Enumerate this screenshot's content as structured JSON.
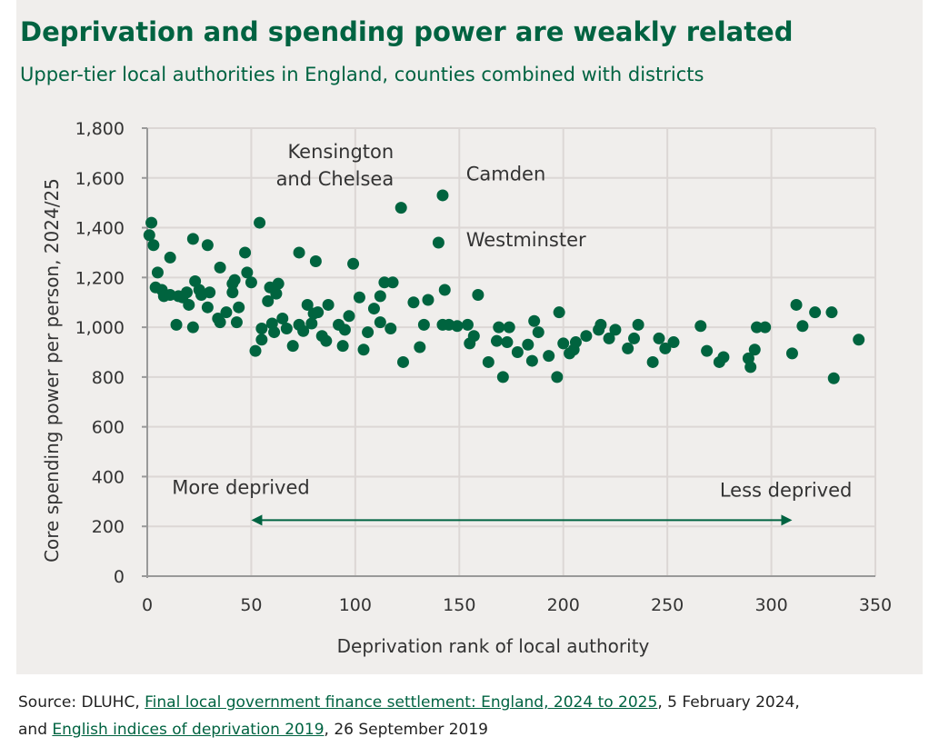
{
  "title": "Deprivation and spending power are weakly related",
  "subtitle": "Upper-tier local authorities in England, counties combined with districts",
  "chart_data": {
    "type": "scatter",
    "xlabel": "Deprivation rank of local authority",
    "ylabel": "Core spending power per person, 2024/25",
    "xlim": [
      0,
      350
    ],
    "ylim": [
      0,
      1800
    ],
    "xticks": [
      0,
      50,
      100,
      150,
      200,
      250,
      300,
      350
    ],
    "yticks": [
      0,
      200,
      400,
      600,
      800,
      1000,
      1200,
      1400,
      1600,
      1800
    ],
    "ytick_labels": [
      "0",
      "200",
      "400",
      "600",
      "800",
      "1,000",
      "1,200",
      "1,400",
      "1,600",
      "1,800"
    ],
    "grid": true,
    "color": "#00643f",
    "annotations": [
      {
        "text": "Kensington",
        "x": 122,
        "y": 1680
      },
      {
        "text": "and Chelsea",
        "x": 122,
        "y": 1570
      },
      {
        "text": "Camden",
        "x": 148,
        "y": 1590
      },
      {
        "text": "Westminster",
        "x": 148,
        "y": 1325
      },
      {
        "text": "More deprived",
        "x": 45,
        "y": 330
      },
      {
        "text": "Less deprived",
        "x": 307,
        "y": 320
      }
    ],
    "arrow": {
      "from": 50,
      "to": 310,
      "y": 225
    },
    "points": [
      [
        2,
        1420
      ],
      [
        1,
        1370
      ],
      [
        3,
        1330
      ],
      [
        5,
        1220
      ],
      [
        4,
        1160
      ],
      [
        7,
        1150
      ],
      [
        8,
        1125
      ],
      [
        11,
        1280
      ],
      [
        11,
        1130
      ],
      [
        14,
        1010
      ],
      [
        15,
        1125
      ],
      [
        17,
        1120
      ],
      [
        19,
        1140
      ],
      [
        20,
        1090
      ],
      [
        22,
        1000
      ],
      [
        22,
        1355
      ],
      [
        23,
        1185
      ],
      [
        25,
        1150
      ],
      [
        26,
        1130
      ],
      [
        29,
        1330
      ],
      [
        30,
        1140
      ],
      [
        29,
        1080
      ],
      [
        34,
        1035
      ],
      [
        35,
        1240
      ],
      [
        35,
        1020
      ],
      [
        38,
        1060
      ],
      [
        41,
        1175
      ],
      [
        42,
        1190
      ],
      [
        41,
        1140
      ],
      [
        43,
        1020
      ],
      [
        44,
        1080
      ],
      [
        47,
        1300
      ],
      [
        48,
        1220
      ],
      [
        50,
        1180
      ],
      [
        52,
        905
      ],
      [
        54,
        1420
      ],
      [
        55,
        995
      ],
      [
        55,
        950
      ],
      [
        58,
        1105
      ],
      [
        59,
        1160
      ],
      [
        60,
        1015
      ],
      [
        61,
        980
      ],
      [
        62,
        1135
      ],
      [
        63,
        1175
      ],
      [
        65,
        1035
      ],
      [
        67,
        995
      ],
      [
        70,
        925
      ],
      [
        73,
        1300
      ],
      [
        73,
        1010
      ],
      [
        75,
        985
      ],
      [
        77,
        1090
      ],
      [
        79,
        1015
      ],
      [
        80,
        1055
      ],
      [
        81,
        1265
      ],
      [
        82,
        1060
      ],
      [
        84,
        965
      ],
      [
        86,
        945
      ],
      [
        87,
        1090
      ],
      [
        92,
        1010
      ],
      [
        94,
        925
      ],
      [
        95,
        990
      ],
      [
        97,
        1045
      ],
      [
        99,
        1255
      ],
      [
        102,
        1120
      ],
      [
        104,
        910
      ],
      [
        106,
        980
      ],
      [
        109,
        1075
      ],
      [
        112,
        1020
      ],
      [
        112,
        1125
      ],
      [
        114,
        1180
      ],
      [
        118,
        1180
      ],
      [
        117,
        995
      ],
      [
        122,
        1480
      ],
      [
        123,
        860
      ],
      [
        128,
        1100
      ],
      [
        131,
        920
      ],
      [
        133,
        1010
      ],
      [
        135,
        1110
      ],
      [
        140,
        1340
      ],
      [
        142,
        1530
      ],
      [
        143,
        1150
      ],
      [
        142,
        1010
      ],
      [
        145,
        1010
      ],
      [
        149,
        1005
      ],
      [
        154,
        1010
      ],
      [
        155,
        935
      ],
      [
        157,
        965
      ],
      [
        159,
        1130
      ],
      [
        164,
        860
      ],
      [
        168,
        945
      ],
      [
        169,
        1000
      ],
      [
        171,
        800
      ],
      [
        173,
        940
      ],
      [
        174,
        1000
      ],
      [
        178,
        900
      ],
      [
        183,
        930
      ],
      [
        185,
        865
      ],
      [
        186,
        1025
      ],
      [
        188,
        980
      ],
      [
        193,
        885
      ],
      [
        197,
        800
      ],
      [
        198,
        1060
      ],
      [
        200,
        935
      ],
      [
        203,
        895
      ],
      [
        205,
        910
      ],
      [
        206,
        940
      ],
      [
        211,
        965
      ],
      [
        217,
        990
      ],
      [
        218,
        1010
      ],
      [
        222,
        955
      ],
      [
        225,
        990
      ],
      [
        231,
        915
      ],
      [
        234,
        955
      ],
      [
        236,
        1010
      ],
      [
        243,
        860
      ],
      [
        246,
        955
      ],
      [
        249,
        915
      ],
      [
        253,
        940
      ],
      [
        266,
        1005
      ],
      [
        269,
        905
      ],
      [
        275,
        860
      ],
      [
        277,
        880
      ],
      [
        289,
        875
      ],
      [
        290,
        840
      ],
      [
        292,
        910
      ],
      [
        293,
        1000
      ],
      [
        297,
        1000
      ],
      [
        310,
        895
      ],
      [
        312,
        1090
      ],
      [
        315,
        1005
      ],
      [
        321,
        1060
      ],
      [
        329,
        1060
      ],
      [
        330,
        795
      ],
      [
        342,
        950
      ]
    ]
  },
  "source": {
    "prefix": "Source: DLUHC, ",
    "link1": "Final local government finance settlement: England, 2024 to 2025",
    "mid": ", 5 February 2024,",
    "line2_prefix": "and ",
    "link2": "English indices of deprivation 2019",
    "suffix": ", 26 September 2019"
  }
}
